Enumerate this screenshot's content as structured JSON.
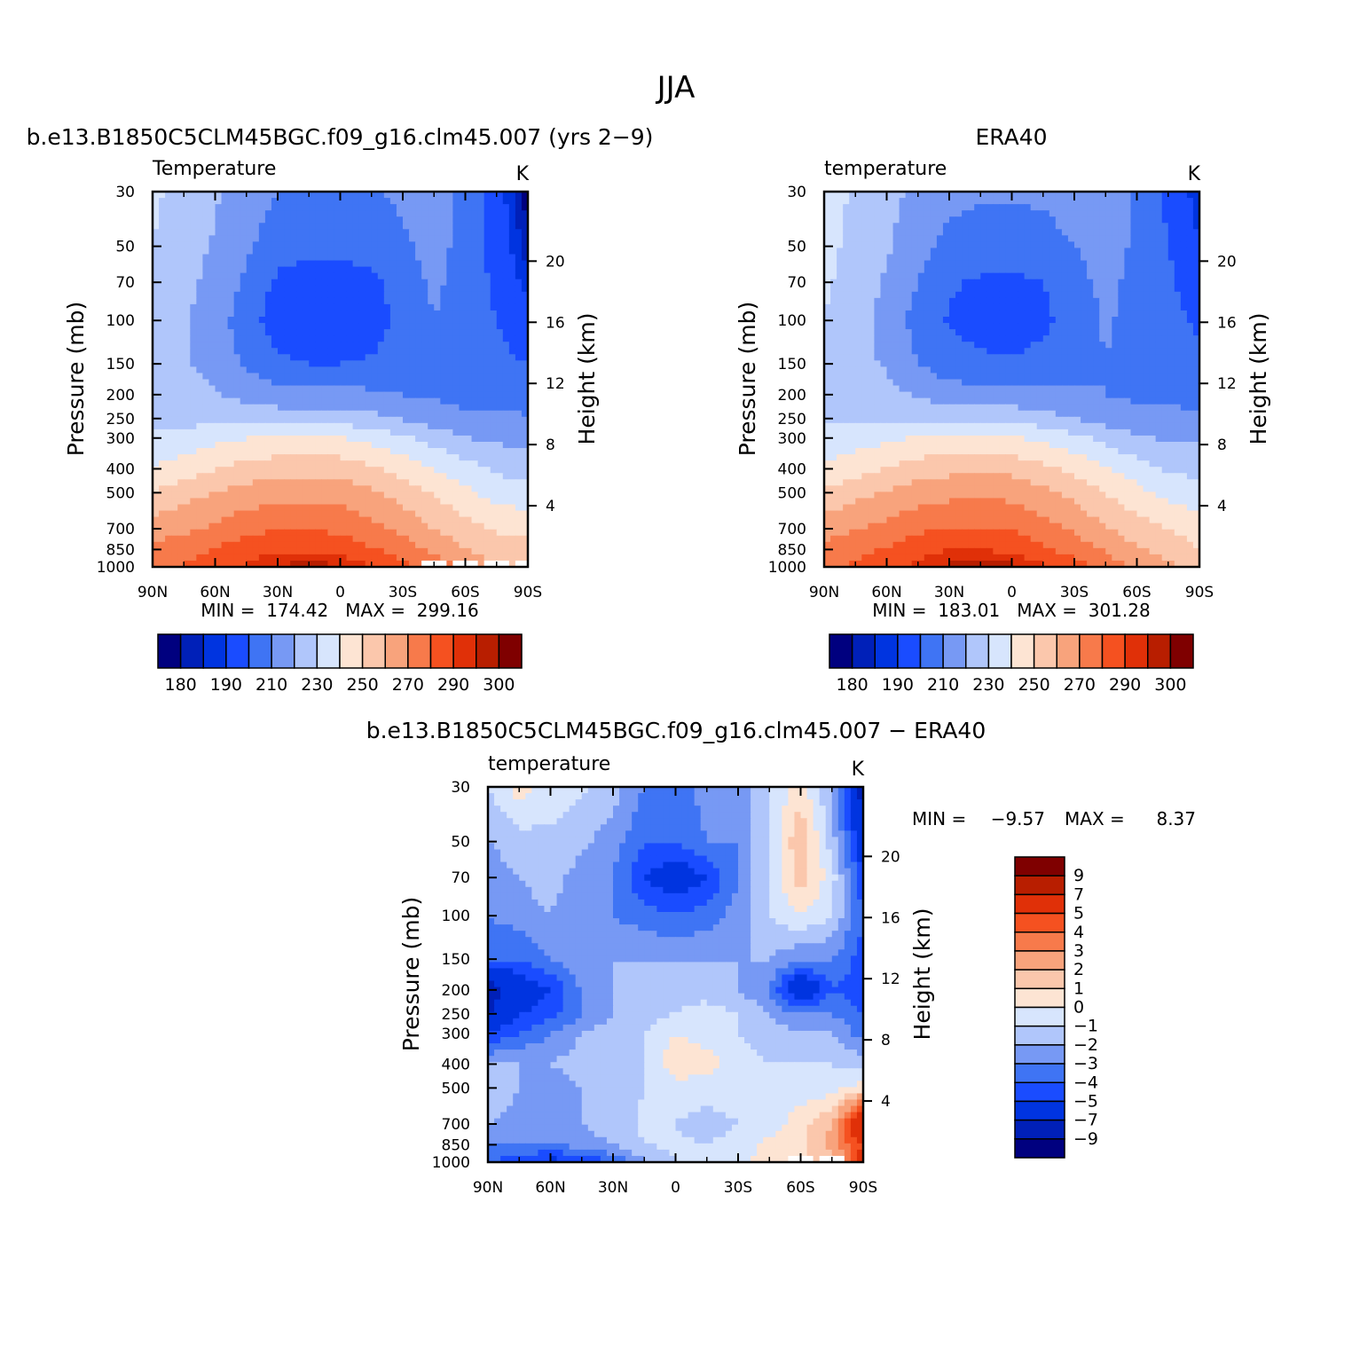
{
  "figure": {
    "title": "JJA"
  },
  "palettes": {
    "absolute": [
      "#00007f",
      "#0020b8",
      "#0034e0",
      "#1a4cff",
      "#3f74f4",
      "#7799f4",
      "#b0c6fb",
      "#d7e5fd",
      "#fde4d3",
      "#fbc7ac",
      "#f8a37c",
      "#f77a4b",
      "#f55120",
      "#e03008",
      "#b81e00",
      "#7f0000"
    ],
    "difference": [
      "#00007f",
      "#0020b8",
      "#0034e0",
      "#1a4cff",
      "#3f74f4",
      "#7799f4",
      "#b0c6fb",
      "#d7e5fd",
      "#fde4d3",
      "#fbc7ac",
      "#f8a37c",
      "#f77a4b",
      "#f55120",
      "#e03008",
      "#b81e00",
      "#7f0000"
    ]
  },
  "chart_data": [
    {
      "type": "heatmap",
      "panel": "model",
      "title": "b.e13.B1850C5CLM45BGC.f09_g16.clm45.007 (yrs 2−9)",
      "left_string": "Temperature",
      "units": "K",
      "xlabel": "",
      "ylabel": "Pressure (mb)",
      "ylabel_right": "Height (km)",
      "x_ticklabels": [
        "90N",
        "60N",
        "30N",
        "0",
        "30S",
        "60S",
        "90S"
      ],
      "x_tickvalues": [
        90,
        60,
        30,
        0,
        -30,
        -60,
        -90
      ],
      "y_ticklabels": [
        "30",
        "50",
        "70",
        "100",
        "150",
        "200",
        "250",
        "300",
        "400",
        "500",
        "700",
        "850",
        "1000"
      ],
      "y_tickvalues": [
        30,
        50,
        70,
        100,
        150,
        200,
        250,
        300,
        400,
        500,
        700,
        850,
        1000
      ],
      "y_right_ticklabels": [
        "20",
        "16",
        "12",
        "8",
        "4"
      ],
      "y_right_tickvalues": [
        20,
        16,
        12,
        8,
        4
      ],
      "ylim": [
        1000,
        30
      ],
      "y_scale": "log",
      "stats_text": "MIN =  174.42   MAX =  299.16",
      "min": 174.42,
      "max": 299.16,
      "colorbar_labels": [
        "180",
        "190",
        "210",
        "230",
        "250",
        "270",
        "290",
        "300"
      ],
      "colorbar_orientation": "horizontal",
      "levels": [
        180,
        185,
        190,
        200,
        210,
        220,
        230,
        240,
        250,
        260,
        270,
        280,
        290,
        295,
        300
      ],
      "grid": {
        "lat": [
          90,
          75,
          60,
          45,
          30,
          15,
          0,
          -15,
          -30,
          -45,
          -60,
          -75,
          -90
        ],
        "p": [
          30,
          50,
          70,
          100,
          150,
          200,
          250,
          300,
          400,
          500,
          700,
          850,
          1000
        ],
        "values": [
          [
            232,
            226,
            221,
            215,
            210,
            209,
            209,
            209,
            212,
            216,
            206,
            195,
            176
          ],
          [
            230,
            224,
            219,
            212,
            204,
            202,
            202,
            204,
            208,
            214,
            206,
            196,
            182
          ],
          [
            228,
            223,
            217,
            208,
            198,
            196,
            196,
            198,
            204,
            212,
            206,
            198,
            187
          ],
          [
            226,
            221,
            215,
            204,
            195,
            193,
            193,
            196,
            202,
            210,
            205,
            200,
            195
          ],
          [
            224,
            221,
            217,
            208,
            202,
            200,
            200,
            201,
            205,
            209,
            205,
            202,
            200
          ],
          [
            225,
            223,
            221,
            217,
            214,
            213,
            213,
            212,
            210,
            209,
            206,
            205,
            205
          ],
          [
            228,
            227,
            226,
            225,
            225,
            225,
            225,
            223,
            219,
            215,
            213,
            212,
            211
          ],
          [
            232,
            234,
            237,
            240,
            241,
            241,
            240,
            237,
            232,
            226,
            220,
            218,
            217
          ],
          [
            241,
            245,
            250,
            254,
            256,
            257,
            256,
            252,
            246,
            240,
            234,
            228,
            226
          ],
          [
            251,
            256,
            260,
            264,
            266,
            267,
            266,
            262,
            256,
            249,
            242,
            236,
            233
          ],
          [
            265,
            268,
            272,
            277,
            279,
            279,
            278,
            273,
            267,
            260,
            254,
            249,
            248
          ],
          [
            272,
            276,
            280,
            286,
            289,
            289,
            287,
            281,
            275,
            268,
            260,
            255,
            253
          ],
          [
            275,
            281,
            285,
            291,
            295,
            298,
            296,
            291,
            284,
            275,
            268,
            262,
            258
          ]
        ],
        "missing": [
          [
            12,
            9
          ],
          [
            12,
            10
          ],
          [
            12,
            11
          ],
          [
            12,
            12
          ]
        ]
      }
    },
    {
      "type": "heatmap",
      "panel": "observation",
      "title": "ERA40",
      "left_string": "temperature",
      "units": "K",
      "xlabel": "",
      "ylabel": "Pressure (mb)",
      "ylabel_right": "Height (km)",
      "x_ticklabels": [
        "90N",
        "60N",
        "30N",
        "0",
        "30S",
        "60S",
        "90S"
      ],
      "x_tickvalues": [
        90,
        60,
        30,
        0,
        -30,
        -60,
        -90
      ],
      "y_ticklabels": [
        "30",
        "50",
        "70",
        "100",
        "150",
        "200",
        "250",
        "300",
        "400",
        "500",
        "700",
        "850",
        "1000"
      ],
      "y_tickvalues": [
        30,
        50,
        70,
        100,
        150,
        200,
        250,
        300,
        400,
        500,
        700,
        850,
        1000
      ],
      "y_right_ticklabels": [
        "20",
        "16",
        "12",
        "8",
        "4"
      ],
      "y_right_tickvalues": [
        20,
        16,
        12,
        8,
        4
      ],
      "ylim": [
        1000,
        30
      ],
      "y_scale": "log",
      "stats_text": "MIN =  183.01   MAX =  301.28",
      "min": 183.01,
      "max": 301.28,
      "colorbar_labels": [
        "180",
        "190",
        "210",
        "230",
        "250",
        "270",
        "290",
        "300"
      ],
      "colorbar_orientation": "horizontal",
      "levels": [
        180,
        185,
        190,
        200,
        210,
        220,
        230,
        240,
        250,
        260,
        270,
        280,
        290,
        295,
        300
      ],
      "grid": {
        "lat": [
          90,
          75,
          60,
          45,
          30,
          15,
          0,
          -15,
          -30,
          -45,
          -60,
          -75,
          -90
        ],
        "p": [
          30,
          50,
          70,
          100,
          150,
          200,
          250,
          300,
          400,
          500,
          700,
          850,
          1000
        ],
        "values": [
          [
            236,
            228,
            223,
            218,
            213,
            212,
            212,
            212,
            215,
            218,
            208,
            198,
            186
          ],
          [
            234,
            226,
            221,
            214,
            207,
            204,
            204,
            206,
            210,
            215,
            208,
            200,
            190
          ],
          [
            232,
            225,
            219,
            210,
            201,
            199,
            198,
            200,
            206,
            213,
            207,
            202,
            194
          ],
          [
            230,
            223,
            217,
            206,
            199,
            196,
            195,
            198,
            204,
            211,
            207,
            203,
            198
          ],
          [
            228,
            223,
            219,
            210,
            204,
            202,
            201,
            203,
            206,
            210,
            207,
            205,
            203
          ],
          [
            227,
            225,
            223,
            219,
            215,
            214,
            214,
            213,
            211,
            210,
            208,
            207,
            207
          ],
          [
            229,
            228,
            227,
            226,
            226,
            226,
            226,
            224,
            220,
            216,
            214,
            213,
            212
          ],
          [
            233,
            235,
            238,
            241,
            242,
            242,
            241,
            238,
            233,
            227,
            221,
            219,
            218
          ],
          [
            242,
            246,
            251,
            255,
            257,
            258,
            257,
            253,
            247,
            241,
            235,
            229,
            227
          ],
          [
            252,
            257,
            261,
            265,
            267,
            268,
            267,
            263,
            257,
            250,
            243,
            237,
            234
          ],
          [
            266,
            269,
            273,
            278,
            280,
            280,
            279,
            274,
            268,
            261,
            255,
            250,
            245
          ],
          [
            273,
            277,
            281,
            287,
            290,
            290,
            288,
            282,
            276,
            269,
            261,
            256,
            250
          ],
          [
            276,
            282,
            286,
            292,
            296,
            299,
            297,
            292,
            285,
            276,
            269,
            263,
            252
          ]
        ],
        "missing": []
      }
    },
    {
      "type": "heatmap",
      "panel": "difference",
      "title": "b.e13.B1850C5CLM45BGC.f09_g16.clm45.007 − ERA40",
      "left_string": "temperature",
      "units": "K",
      "xlabel": "",
      "ylabel": "Pressure (mb)",
      "ylabel_right": "Height (km)",
      "x_ticklabels": [
        "90N",
        "60N",
        "30N",
        "0",
        "30S",
        "60S",
        "90S"
      ],
      "x_tickvalues": [
        90,
        60,
        30,
        0,
        -30,
        -60,
        -90
      ],
      "y_ticklabels": [
        "30",
        "50",
        "70",
        "100",
        "150",
        "200",
        "250",
        "300",
        "400",
        "500",
        "700",
        "850",
        "1000"
      ],
      "y_tickvalues": [
        30,
        50,
        70,
        100,
        150,
        200,
        250,
        300,
        400,
        500,
        700,
        850,
        1000
      ],
      "y_right_ticklabels": [
        "20",
        "16",
        "12",
        "8",
        "4"
      ],
      "y_right_tickvalues": [
        20,
        16,
        12,
        8,
        4
      ],
      "ylim": [
        1000,
        30
      ],
      "y_scale": "log",
      "stats_min_label": "MIN =",
      "stats_min_value": "−9.57",
      "stats_max_label": "MAX =",
      "stats_max_value": "8.37",
      "min": -9.57,
      "max": 8.37,
      "colorbar_labels": [
        "9",
        "7",
        "5",
        "4",
        "3",
        "2",
        "1",
        "0",
        "−1",
        "−2",
        "−3",
        "−4",
        "−5",
        "−7",
        "−9"
      ],
      "colorbar_orientation": "vertical",
      "levels": [
        -9,
        -7,
        -5,
        -4,
        -3,
        -2,
        -1,
        0,
        1,
        2,
        3,
        4,
        5,
        7,
        9
      ],
      "grid": {
        "lat": [
          90,
          75,
          60,
          45,
          30,
          15,
          0,
          -15,
          -30,
          -45,
          -60,
          -75,
          -90
        ],
        "p": [
          30,
          50,
          70,
          100,
          150,
          200,
          250,
          300,
          400,
          500,
          700,
          850,
          1000
        ],
        "values": [
          [
            -1.0,
            0.5,
            -0.5,
            -0.8,
            -1.5,
            -3.0,
            -3.5,
            -2.5,
            -3.0,
            -1.0,
            0.5,
            -2.0,
            -8.0
          ],
          [
            -2.0,
            -1.5,
            -1.2,
            -1.8,
            -2.5,
            -4.0,
            -4.0,
            -3.0,
            -3.0,
            -1.0,
            2.0,
            -1.5,
            -6.0
          ],
          [
            -2.5,
            -2.0,
            -1.5,
            -2.5,
            -3.0,
            -5.0,
            -6.0,
            -5.0,
            -3.0,
            -1.0,
            1.5,
            -0.5,
            -5.0
          ],
          [
            -3.0,
            -2.5,
            -2.0,
            -3.0,
            -3.0,
            -3.5,
            -4.0,
            -3.5,
            -2.5,
            -1.0,
            0.0,
            -1.0,
            -4.0
          ],
          [
            -4.0,
            -4.0,
            -3.0,
            -2.0,
            -2.0,
            -2.0,
            -2.0,
            -2.0,
            -2.0,
            -2.0,
            -3.0,
            -3.0,
            -4.5
          ],
          [
            -8.0,
            -6.0,
            -5.0,
            -3.0,
            -2.0,
            -1.5,
            -1.5,
            -1.5,
            -2.0,
            -3.0,
            -7.0,
            -4.0,
            -4.5
          ],
          [
            -7.0,
            -5.0,
            -4.5,
            -3.0,
            -2.0,
            -1.5,
            -1.0,
            -0.5,
            -1.0,
            -2.0,
            -3.0,
            -3.0,
            -4.0
          ],
          [
            -5.0,
            -4.0,
            -3.0,
            -2.0,
            -1.5,
            -1.0,
            0.0,
            -0.5,
            -1.0,
            -1.5,
            -2.0,
            -2.0,
            -3.5
          ],
          [
            -2.0,
            -2.0,
            -2.0,
            -1.5,
            -1.5,
            -1.0,
            0.8,
            0.5,
            -0.5,
            -1.0,
            -1.0,
            -1.0,
            -1.5
          ],
          [
            -1.0,
            -2.0,
            -2.5,
            -2.0,
            -1.5,
            -1.0,
            -0.5,
            -0.5,
            -0.5,
            -0.5,
            -0.5,
            -0.5,
            0.5
          ],
          [
            -2.0,
            -2.5,
            -3.0,
            -2.0,
            -1.5,
            -0.8,
            -1.0,
            -1.5,
            -1.0,
            -0.5,
            0.5,
            2.0,
            8.0
          ],
          [
            -3.0,
            -3.0,
            -3.0,
            -2.5,
            -2.0,
            -1.0,
            -0.8,
            -1.0,
            -0.5,
            0.3,
            0.8,
            2.5,
            5.0
          ],
          [
            -4.0,
            -4.5,
            -5.5,
            -5.0,
            -4.0,
            -2.0,
            -1.0,
            -0.5,
            -0.3,
            0.5,
            1.0,
            1.0,
            6.0
          ]
        ],
        "missing": [
          [
            12,
            10
          ],
          [
            12,
            11
          ]
        ]
      }
    }
  ]
}
